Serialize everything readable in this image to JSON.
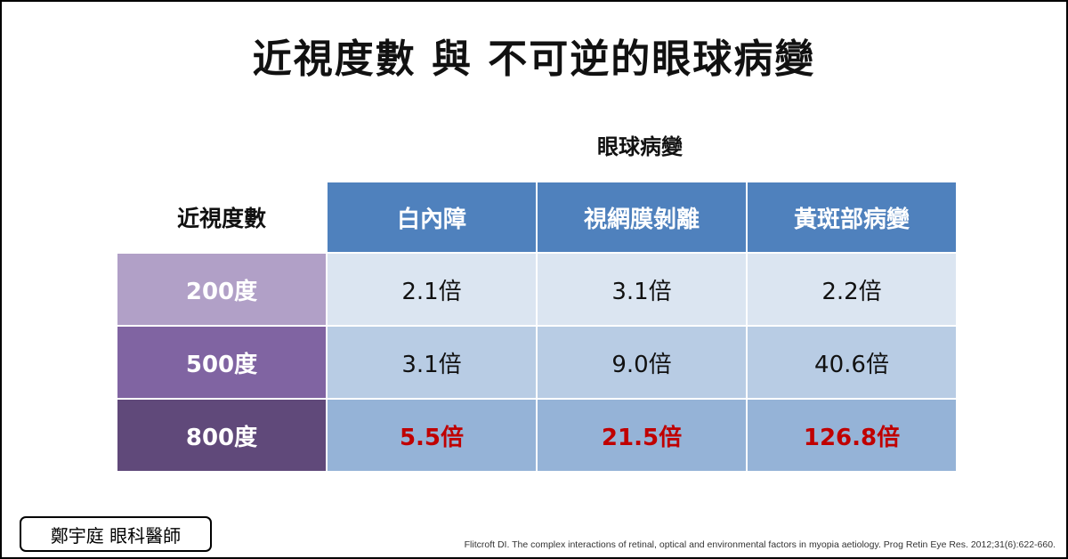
{
  "title": "近視度數 與 不可逆的眼球病變",
  "table": {
    "group_header": "眼球病變",
    "row_header_label": "近視度數",
    "columns": [
      "白內障",
      "視網膜剝離",
      "黃斑部病變"
    ],
    "rows": [
      {
        "label": "200度",
        "label_bg": "#b1a0c7",
        "cells": [
          "2.1倍",
          "3.1倍",
          "2.2倍"
        ],
        "highlight": false
      },
      {
        "label": "500度",
        "label_bg": "#8064a2",
        "cells": [
          "3.1倍",
          "9.0倍",
          "40.6倍"
        ],
        "highlight": false
      },
      {
        "label": "800度",
        "label_bg": "#60497a",
        "cells": [
          "5.5倍",
          "21.5倍",
          "126.8倍"
        ],
        "highlight": true
      }
    ]
  },
  "author": "鄭宇庭 眼科醫師",
  "citation": "Flitcroft DI.  The complex interactions of retinal, optical and environmental factors in myopia aetiology. Prog Retin Eye Res. 2012;31(6):622-660.",
  "colors": {
    "header_blue": "#4f81bd",
    "highlight_red": "#c00000"
  }
}
